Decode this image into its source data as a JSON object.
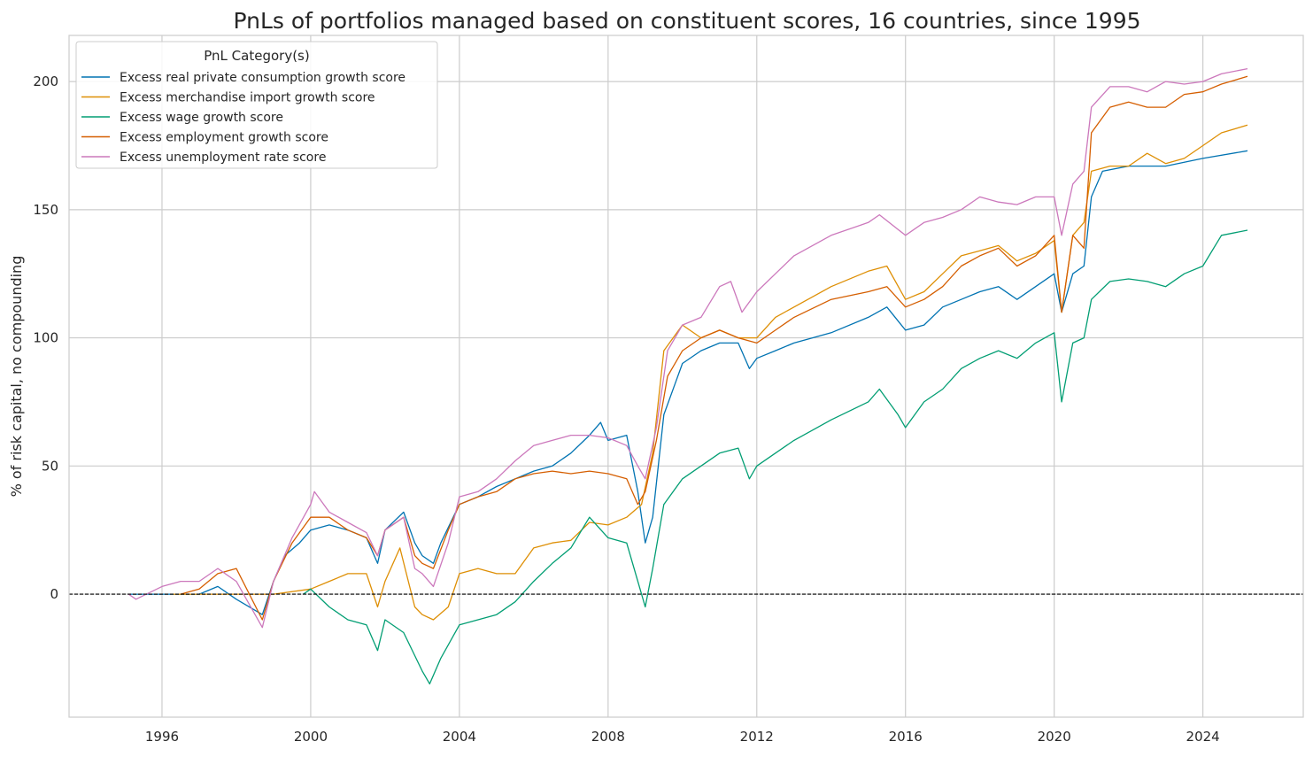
{
  "chart_data": {
    "type": "line",
    "title": "PnLs of portfolios managed based on constituent scores, 16 countries, since 1995",
    "xlabel": "",
    "ylabel": "% of risk capital, no compounding",
    "xlim": [
      1993.5,
      2026.7
    ],
    "ylim": [
      -48,
      218
    ],
    "x_ticks": [
      1996,
      2000,
      2004,
      2008,
      2012,
      2016,
      2020,
      2024
    ],
    "y_ticks": [
      0,
      50,
      100,
      150,
      200
    ],
    "grid": true,
    "reference_line": {
      "y": 0,
      "style": "dashed",
      "color": "#000000"
    },
    "legend": {
      "title": "PnL Category(s)",
      "placement": "top-left"
    },
    "series": [
      {
        "name": "Excess real private consumption growth score",
        "color": "#0173b2",
        "x": [
          1995.1,
          1996,
          1997,
          1997.5,
          1998,
          1998.7,
          1999,
          1999.3,
          1999.7,
          2000,
          2000.5,
          2001,
          2001.5,
          2001.8,
          2002,
          2002.5,
          2002.8,
          2003,
          2003.3,
          2003.5,
          2004,
          2004.5,
          2005,
          2005.5,
          2006,
          2006.5,
          2007,
          2007.5,
          2007.8,
          2008,
          2008.5,
          2008.8,
          2009,
          2009.2,
          2009.5,
          2010,
          2010.5,
          2011,
          2011.5,
          2011.8,
          2012,
          2012.5,
          2013,
          2014,
          2015,
          2015.5,
          2016,
          2016.5,
          2017,
          2017.5,
          2018,
          2018.5,
          2019,
          2019.5,
          2020,
          2020.2,
          2020.5,
          2020.8,
          2021,
          2021.3,
          2022,
          2023,
          2024,
          2025.2
        ],
        "y": [
          0,
          0,
          0,
          3,
          -2,
          -8,
          5,
          15,
          20,
          25,
          27,
          25,
          22,
          12,
          25,
          32,
          20,
          15,
          12,
          20,
          35,
          38,
          42,
          45,
          48,
          50,
          55,
          62,
          67,
          60,
          62,
          40,
          20,
          30,
          70,
          90,
          95,
          98,
          98,
          88,
          92,
          95,
          98,
          102,
          108,
          112,
          103,
          105,
          112,
          115,
          118,
          120,
          115,
          120,
          125,
          110,
          125,
          128,
          155,
          165,
          167,
          167,
          170,
          173
        ]
      },
      {
        "name": "Excess merchandise import growth score",
        "color": "#de8f05",
        "x": [
          1996.3,
          1997,
          1998,
          1999,
          2000,
          2000.5,
          2001,
          2001.5,
          2001.8,
          2002,
          2002.4,
          2002.8,
          2003,
          2003.3,
          2003.7,
          2004,
          2004.5,
          2005,
          2005.5,
          2006,
          2006.5,
          2007,
          2007.5,
          2008,
          2008.5,
          2008.9,
          2009.2,
          2009.5,
          2010,
          2010.5,
          2011,
          2011.5,
          2012,
          2012.5,
          2013,
          2014,
          2015,
          2015.5,
          2016,
          2016.5,
          2017,
          2017.5,
          2018,
          2018.5,
          2019,
          2019.5,
          2020,
          2020.2,
          2020.5,
          2020.8,
          2021,
          2021.5,
          2022,
          2022.5,
          2023,
          2023.5,
          2024,
          2024.5,
          2025.2
        ],
        "y": [
          0,
          0,
          0,
          0,
          2,
          5,
          8,
          8,
          -5,
          5,
          18,
          -5,
          -8,
          -10,
          -5,
          8,
          10,
          8,
          8,
          18,
          20,
          21,
          28,
          27,
          30,
          35,
          55,
          95,
          105,
          100,
          103,
          100,
          100,
          108,
          112,
          120,
          126,
          128,
          115,
          118,
          125,
          132,
          134,
          136,
          130,
          133,
          138,
          110,
          140,
          145,
          165,
          167,
          167,
          172,
          168,
          170,
          175,
          180,
          183
        ]
      },
      {
        "name": "Excess wage growth score",
        "color": "#029e73",
        "x": [
          1999.8,
          2000,
          2000.5,
          2001,
          2001.5,
          2001.8,
          2002,
          2002.5,
          2003,
          2003.2,
          2003.5,
          2004,
          2004.5,
          2005,
          2005.5,
          2006,
          2006.5,
          2007,
          2007.5,
          2008,
          2008.5,
          2008.8,
          2009,
          2009.2,
          2009.5,
          2010,
          2010.5,
          2011,
          2011.5,
          2011.8,
          2012,
          2012.5,
          2013,
          2014,
          2015,
          2015.3,
          2015.8,
          2016,
          2016.5,
          2017,
          2017.5,
          2018,
          2018.5,
          2019,
          2019.5,
          2020,
          2020.2,
          2020.5,
          2020.8,
          2021,
          2021.5,
          2022,
          2022.5,
          2023,
          2023.5,
          2024,
          2024.5,
          2025.2
        ],
        "y": [
          0,
          2,
          -5,
          -10,
          -12,
          -22,
          -10,
          -15,
          -30,
          -35,
          -25,
          -12,
          -10,
          -8,
          -3,
          5,
          12,
          18,
          30,
          22,
          20,
          5,
          -5,
          10,
          35,
          45,
          50,
          55,
          57,
          45,
          50,
          55,
          60,
          68,
          75,
          80,
          70,
          65,
          75,
          80,
          88,
          92,
          95,
          92,
          98,
          102,
          75,
          98,
          100,
          115,
          122,
          123,
          122,
          120,
          125,
          128,
          140,
          142
        ]
      },
      {
        "name": "Excess employment growth score",
        "color": "#d55e00",
        "x": [
          1996.5,
          1997,
          1997.5,
          1998,
          1998.7,
          1999,
          1999.5,
          2000,
          2000.5,
          2001,
          2001.5,
          2001.8,
          2002,
          2002.5,
          2002.8,
          2003,
          2003.3,
          2003.7,
          2004,
          2004.5,
          2005,
          2005.5,
          2006,
          2006.5,
          2007,
          2007.5,
          2008,
          2008.5,
          2008.8,
          2009,
          2009.3,
          2009.6,
          2010,
          2010.5,
          2011,
          2011.5,
          2012,
          2012.5,
          2013,
          2014,
          2015,
          2015.5,
          2016,
          2016.5,
          2017,
          2017.5,
          2018,
          2018.5,
          2019,
          2019.5,
          2020,
          2020.2,
          2020.5,
          2020.8,
          2021,
          2021.5,
          2022,
          2022.5,
          2023,
          2023.5,
          2024,
          2024.5,
          2025.2
        ],
        "y": [
          0,
          2,
          8,
          10,
          -10,
          5,
          20,
          30,
          30,
          25,
          22,
          15,
          25,
          30,
          15,
          12,
          10,
          25,
          35,
          38,
          40,
          45,
          47,
          48,
          47,
          48,
          47,
          45,
          35,
          40,
          60,
          85,
          95,
          100,
          103,
          100,
          98,
          103,
          108,
          115,
          118,
          120,
          112,
          115,
          120,
          128,
          132,
          135,
          128,
          132,
          140,
          110,
          140,
          135,
          180,
          190,
          192,
          190,
          190,
          195,
          196,
          199,
          202
        ]
      },
      {
        "name": "Excess unemployment rate score",
        "color": "#cc78bc",
        "x": [
          1995.1,
          1995.3,
          1996,
          1996.5,
          1997,
          1997.5,
          1998,
          1998.7,
          1999,
          1999.5,
          2000,
          2000.1,
          2000.5,
          2001,
          2001.5,
          2001.8,
          2002,
          2002.5,
          2002.8,
          2003,
          2003.3,
          2003.7,
          2004,
          2004.5,
          2005,
          2005.5,
          2006,
          2006.5,
          2007,
          2007.5,
          2008,
          2008.5,
          2008.8,
          2009,
          2009.3,
          2009.6,
          2010,
          2010.5,
          2011,
          2011.3,
          2011.6,
          2012,
          2012.5,
          2013,
          2014,
          2015,
          2015.3,
          2016,
          2016.5,
          2017,
          2017.5,
          2018,
          2018.5,
          2019,
          2019.5,
          2020,
          2020.2,
          2020.5,
          2020.8,
          2021,
          2021.5,
          2022,
          2022.5,
          2023,
          2023.5,
          2024,
          2024.5,
          2025.2
        ],
        "y": [
          0,
          -2,
          3,
          5,
          5,
          10,
          5,
          -13,
          5,
          22,
          35,
          40,
          32,
          28,
          24,
          15,
          25,
          30,
          10,
          8,
          3,
          20,
          38,
          40,
          45,
          52,
          58,
          60,
          62,
          62,
          61,
          58,
          50,
          45,
          65,
          95,
          105,
          108,
          120,
          122,
          110,
          118,
          125,
          132,
          140,
          145,
          148,
          140,
          145,
          147,
          150,
          155,
          153,
          152,
          155,
          155,
          140,
          160,
          165,
          190,
          198,
          198,
          196,
          200,
          199,
          200,
          203,
          205
        ]
      }
    ]
  }
}
